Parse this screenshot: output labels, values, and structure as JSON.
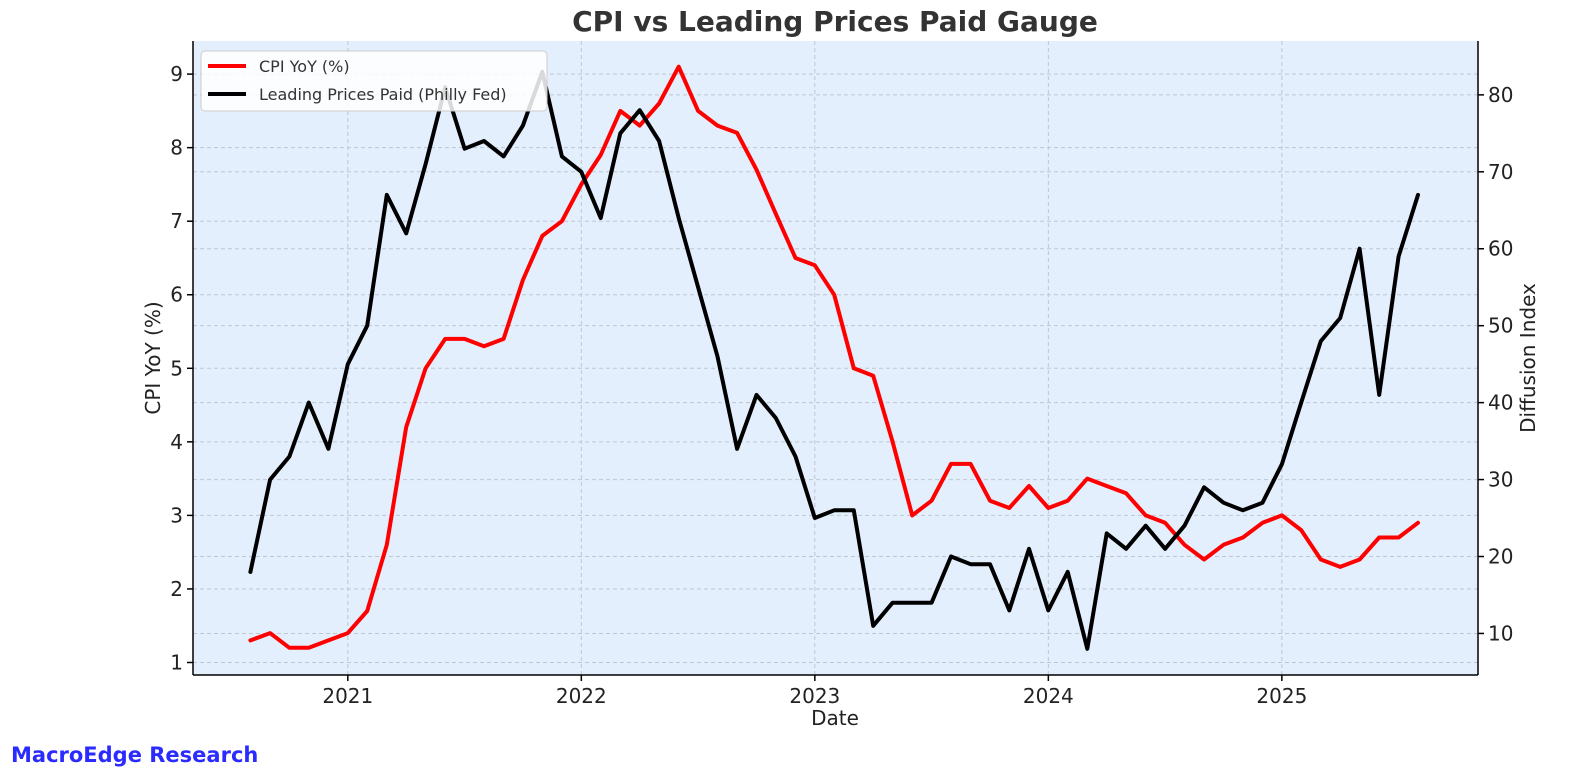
{
  "chart_data": {
    "type": "line",
    "title": "CPI vs Leading Prices Paid Gauge",
    "xlabel": "Date",
    "ylabel": "CPI YoY (%)",
    "y2label": "Diffusion Index",
    "x_ticks": [
      "2021",
      "2022",
      "2023",
      "2024",
      "2025"
    ],
    "x_range": [
      2020.337,
      2025.84
    ],
    "y_range": [
      0.83,
      9.45
    ],
    "y_ticks": [
      1,
      2,
      3,
      4,
      5,
      6,
      7,
      8,
      9
    ],
    "y2_range": [
      4.6,
      87
    ],
    "y2_ticks": [
      10,
      20,
      30,
      40,
      50,
      60,
      70,
      80
    ],
    "grid": true,
    "legend_position": "top-left",
    "colors": {
      "cpi": "#ff0000",
      "leading": "#000000",
      "background": "#e3effd"
    },
    "series": [
      {
        "name": "CPI YoY (%)",
        "axis": "left",
        "color": "#ff0000",
        "x": [
          2020.583,
          2020.667,
          2020.75,
          2020.833,
          2020.917,
          2021.0,
          2021.083,
          2021.167,
          2021.25,
          2021.333,
          2021.417,
          2021.5,
          2021.583,
          2021.667,
          2021.75,
          2021.833,
          2021.917,
          2022.0,
          2022.083,
          2022.167,
          2022.25,
          2022.333,
          2022.417,
          2022.5,
          2022.583,
          2022.667,
          2022.75,
          2022.833,
          2022.917,
          2023.0,
          2023.083,
          2023.167,
          2023.25,
          2023.333,
          2023.417,
          2023.5,
          2023.583,
          2023.667,
          2023.75,
          2023.833,
          2023.917,
          2024.0,
          2024.083,
          2024.167,
          2024.25,
          2024.333,
          2024.417,
          2024.5,
          2024.583,
          2024.667,
          2024.75,
          2024.833,
          2024.917,
          2025.0,
          2025.083,
          2025.167,
          2025.25,
          2025.333,
          2025.417,
          2025.5,
          2025.583
        ],
        "values": [
          1.3,
          1.4,
          1.2,
          1.2,
          1.3,
          1.4,
          1.7,
          2.6,
          4.2,
          5.0,
          5.4,
          5.4,
          5.3,
          5.4,
          6.2,
          6.8,
          7.0,
          7.5,
          7.9,
          8.5,
          8.3,
          8.6,
          9.1,
          8.5,
          8.3,
          8.2,
          7.7,
          7.1,
          6.5,
          6.4,
          6.0,
          5.0,
          4.9,
          4.0,
          3.0,
          3.2,
          3.7,
          3.7,
          3.2,
          3.1,
          3.4,
          3.1,
          3.2,
          3.5,
          3.4,
          3.3,
          3.0,
          2.9,
          2.6,
          2.4,
          2.6,
          2.7,
          2.9,
          3.0,
          2.8,
          2.4,
          2.3,
          2.4,
          2.7,
          2.7,
          2.9
        ]
      },
      {
        "name": "Leading Prices Paid (Philly Fed)",
        "axis": "right",
        "color": "#000000",
        "x": [
          2020.583,
          2020.667,
          2020.75,
          2020.833,
          2020.917,
          2021.0,
          2021.083,
          2021.167,
          2021.25,
          2021.333,
          2021.417,
          2021.5,
          2021.583,
          2021.667,
          2021.75,
          2021.833,
          2021.917,
          2022.0,
          2022.083,
          2022.167,
          2022.25,
          2022.333,
          2022.417,
          2022.5,
          2022.583,
          2022.667,
          2022.75,
          2022.833,
          2022.917,
          2023.0,
          2023.083,
          2023.167,
          2023.25,
          2023.333,
          2023.417,
          2023.5,
          2023.583,
          2023.667,
          2023.75,
          2023.833,
          2023.917,
          2024.0,
          2024.083,
          2024.167,
          2024.25,
          2024.333,
          2024.417,
          2024.5,
          2024.583,
          2024.667,
          2024.75,
          2024.833,
          2024.917,
          2025.0,
          2025.083,
          2025.167,
          2025.25,
          2025.333,
          2025.417,
          2025.5,
          2025.583
        ],
        "values": [
          18,
          30,
          33,
          40,
          34,
          45,
          50,
          67,
          62,
          71,
          81,
          73,
          74,
          72,
          76,
          83,
          72,
          70,
          64,
          75,
          78,
          74,
          64,
          55,
          46,
          34,
          41,
          38,
          33,
          25,
          26,
          26,
          11,
          14,
          14,
          14,
          20,
          19,
          19,
          13,
          21,
          13,
          18,
          8,
          23,
          21,
          24,
          21,
          24,
          29,
          27,
          26,
          27,
          32,
          40,
          48,
          51,
          60,
          41,
          59,
          67
        ]
      }
    ]
  },
  "watermark": "MacroEdge Research"
}
